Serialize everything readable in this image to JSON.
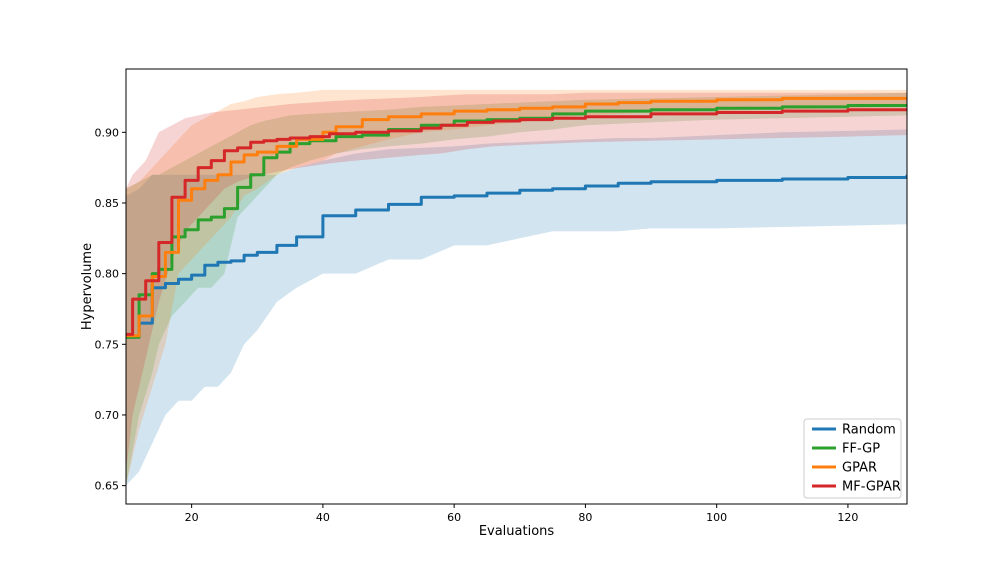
{
  "chart_data": {
    "type": "line",
    "title": "",
    "xlabel": "Evaluations",
    "ylabel": "Hypervolume",
    "xlim": [
      10,
      129
    ],
    "ylim": [
      0.637,
      0.9448
    ],
    "xticks": [
      20,
      40,
      60,
      80,
      100,
      120
    ],
    "yticks": [
      0.65,
      0.7,
      0.75,
      0.8,
      0.85,
      0.9
    ],
    "legend_position": "lower-right",
    "grid": false,
    "series": [
      {
        "name": "Random",
        "color": "#1f77b4",
        "x": [
          10,
          12,
          14,
          16,
          18,
          20,
          22,
          24,
          26,
          28,
          30,
          33,
          36,
          40,
          45,
          50,
          55,
          60,
          65,
          70,
          75,
          80,
          85,
          90,
          95,
          100,
          110,
          120,
          129
        ],
        "y": [
          0.755,
          0.765,
          0.79,
          0.793,
          0.796,
          0.799,
          0.806,
          0.808,
          0.809,
          0.813,
          0.815,
          0.82,
          0.826,
          0.841,
          0.845,
          0.849,
          0.854,
          0.855,
          0.857,
          0.859,
          0.86,
          0.862,
          0.864,
          0.865,
          0.865,
          0.866,
          0.867,
          0.868,
          0.87
        ],
        "lower": [
          0.65,
          0.66,
          0.68,
          0.7,
          0.71,
          0.71,
          0.72,
          0.72,
          0.73,
          0.75,
          0.76,
          0.78,
          0.79,
          0.8,
          0.8,
          0.81,
          0.81,
          0.82,
          0.82,
          0.825,
          0.83,
          0.83,
          0.83,
          0.832,
          0.832,
          0.832,
          0.833,
          0.834,
          0.835
        ],
        "upper": [
          0.855,
          0.86,
          0.87,
          0.87,
          0.87,
          0.87,
          0.87,
          0.87,
          0.87,
          0.87,
          0.87,
          0.87,
          0.875,
          0.88,
          0.885,
          0.888,
          0.889,
          0.89,
          0.892,
          0.893,
          0.894,
          0.895,
          0.896,
          0.896,
          0.897,
          0.898,
          0.9,
          0.901,
          0.902
        ]
      },
      {
        "name": "FF-GP",
        "color": "#2ca02c",
        "x": [
          10,
          12,
          14,
          15,
          17,
          19,
          21,
          23,
          25,
          27,
          29,
          31,
          33,
          35,
          38,
          42,
          46,
          50,
          55,
          60,
          65,
          70,
          75,
          80,
          90,
          100,
          110,
          120,
          129
        ],
        "y": [
          0.755,
          0.785,
          0.8,
          0.803,
          0.826,
          0.831,
          0.838,
          0.84,
          0.846,
          0.861,
          0.87,
          0.882,
          0.886,
          0.892,
          0.894,
          0.897,
          0.898,
          0.902,
          0.905,
          0.908,
          0.909,
          0.91,
          0.913,
          0.915,
          0.916,
          0.917,
          0.918,
          0.919,
          0.92
        ],
        "lower": [
          0.65,
          0.7,
          0.73,
          0.75,
          0.77,
          0.78,
          0.79,
          0.79,
          0.8,
          0.84,
          0.85,
          0.86,
          0.87,
          0.875,
          0.88,
          0.885,
          0.888,
          0.89,
          0.892,
          0.895,
          0.897,
          0.9,
          0.902,
          0.905,
          0.907,
          0.909,
          0.91,
          0.911,
          0.912
        ],
        "upper": [
          0.86,
          0.865,
          0.87,
          0.87,
          0.875,
          0.88,
          0.885,
          0.89,
          0.895,
          0.9,
          0.905,
          0.908,
          0.91,
          0.912,
          0.913,
          0.914,
          0.915,
          0.916,
          0.918,
          0.919,
          0.92,
          0.921,
          0.922,
          0.923,
          0.924,
          0.925,
          0.926,
          0.927,
          0.928
        ]
      },
      {
        "name": "GPAR",
        "color": "#ff7f0e",
        "x": [
          10,
          12,
          14,
          16,
          18,
          20,
          22,
          24,
          26,
          28,
          30,
          33,
          36,
          40,
          42,
          46,
          50,
          55,
          60,
          65,
          70,
          75,
          80,
          85,
          90,
          100,
          110,
          120,
          129
        ],
        "y": [
          0.756,
          0.77,
          0.798,
          0.815,
          0.852,
          0.86,
          0.866,
          0.87,
          0.879,
          0.884,
          0.886,
          0.89,
          0.895,
          0.9,
          0.904,
          0.909,
          0.911,
          0.913,
          0.915,
          0.916,
          0.917,
          0.918,
          0.92,
          0.921,
          0.922,
          0.923,
          0.924,
          0.924,
          0.925
        ],
        "lower": [
          0.65,
          0.69,
          0.72,
          0.75,
          0.8,
          0.81,
          0.82,
          0.83,
          0.84,
          0.855,
          0.86,
          0.87,
          0.875,
          0.88,
          0.885,
          0.89,
          0.895,
          0.9,
          0.902,
          0.905,
          0.907,
          0.91,
          0.912,
          0.913,
          0.914,
          0.915,
          0.916,
          0.917,
          0.918
        ],
        "upper": [
          0.86,
          0.865,
          0.875,
          0.885,
          0.895,
          0.905,
          0.91,
          0.915,
          0.92,
          0.922,
          0.925,
          0.927,
          0.928,
          0.93,
          0.93,
          0.93,
          0.93,
          0.93,
          0.93,
          0.93,
          0.93,
          0.93,
          0.93,
          0.93,
          0.93,
          0.93,
          0.93,
          0.93,
          0.93
        ]
      },
      {
        "name": "MF-GPAR",
        "color": "#d62728",
        "x": [
          10,
          11,
          13,
          15,
          17,
          19,
          21,
          23,
          25,
          27,
          29,
          31,
          33,
          35,
          38,
          41,
          45,
          50,
          55,
          58,
          62,
          66,
          70,
          75,
          80,
          90,
          100,
          110,
          120,
          129
        ],
        "y": [
          0.757,
          0.782,
          0.795,
          0.822,
          0.854,
          0.866,
          0.875,
          0.88,
          0.887,
          0.889,
          0.893,
          0.894,
          0.895,
          0.896,
          0.897,
          0.899,
          0.9,
          0.901,
          0.903,
          0.905,
          0.907,
          0.908,
          0.909,
          0.91,
          0.911,
          0.913,
          0.914,
          0.915,
          0.916,
          0.917
        ],
        "lower": [
          0.66,
          0.7,
          0.74,
          0.78,
          0.81,
          0.83,
          0.84,
          0.85,
          0.86,
          0.865,
          0.868,
          0.87,
          0.872,
          0.874,
          0.876,
          0.878,
          0.88,
          0.882,
          0.884,
          0.885,
          0.888,
          0.89,
          0.891,
          0.892,
          0.893,
          0.894,
          0.895,
          0.896,
          0.897,
          0.898
        ],
        "upper": [
          0.86,
          0.87,
          0.88,
          0.9,
          0.905,
          0.91,
          0.912,
          0.914,
          0.915,
          0.916,
          0.917,
          0.918,
          0.919,
          0.92,
          0.921,
          0.922,
          0.923,
          0.924,
          0.925,
          0.926,
          0.927,
          0.927,
          0.927,
          0.927,
          0.928,
          0.928,
          0.928,
          0.928,
          0.928,
          0.928
        ]
      }
    ]
  }
}
